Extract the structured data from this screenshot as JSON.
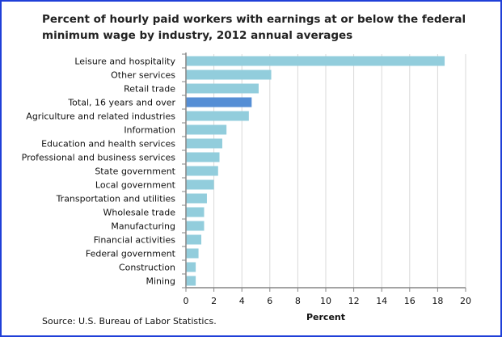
{
  "chart_data": {
    "type": "bar",
    "orientation": "horizontal",
    "title": "Percent of hourly paid workers with earnings at or below the federal minimum wage by industry, 2012 annual averages",
    "xlabel": "Percent",
    "ylabel": "",
    "xlim": [
      0,
      20
    ],
    "xticks": [
      "0",
      "2",
      "4",
      "6",
      "8",
      "10",
      "12",
      "14",
      "16",
      "18",
      "20"
    ],
    "grid": true,
    "categories": [
      "Leisure and hospitality",
      "Other services",
      "Retail trade",
      "Total, 16 years and over",
      "Agriculture and related industries",
      "Information",
      "Education and health services",
      "Professional and business services",
      "State government",
      "Local government",
      "Transportation and utilities",
      "Wholesale trade",
      "Manufacturing",
      "Financial activities",
      "Federal government",
      "Construction",
      "Mining"
    ],
    "values": [
      18.5,
      6.1,
      5.2,
      4.7,
      4.5,
      2.9,
      2.6,
      2.4,
      2.3,
      2.0,
      1.5,
      1.3,
      1.3,
      1.1,
      0.9,
      0.7,
      0.7
    ],
    "highlight_category": "Total, 16 years and over",
    "colors": {
      "bar": "#92cddc",
      "highlight": "#558ed5",
      "grid": "#d9d9d9",
      "axis": "#868686",
      "frame": "#1f3fd8"
    },
    "source": "Source: U.S. Bureau of Labor Statistics."
  }
}
